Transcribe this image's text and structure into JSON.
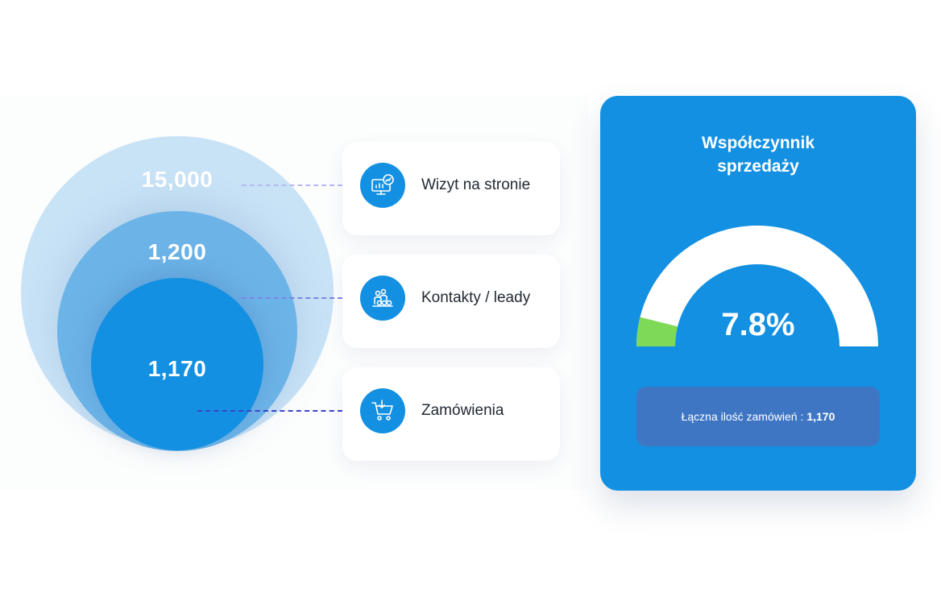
{
  "chart_data": {
    "type": "funnel",
    "stages": [
      {
        "label": "Wizyt na stronie",
        "value": 15000,
        "display": "15,000"
      },
      {
        "label": "Kontakty / leady",
        "value": 1200,
        "display": "1,200"
      },
      {
        "label": "Zamówienia",
        "value": 1170,
        "display": "1,170"
      }
    ]
  },
  "gauge": {
    "title": "Współczynnik\nsprzedaży",
    "value": 7.8,
    "display": "7.8%",
    "track_color": "#ffffff",
    "fill_color": "#7ed957"
  },
  "summary": {
    "label": "Łączna ilość zamówień :",
    "value": "1,170"
  },
  "icons": [
    "monitor-chart-icon",
    "group-people-icon",
    "shopping-cart-icon"
  ],
  "colors": {
    "accent": "#1390e2",
    "outer_circle": "#c8e2f6",
    "middle_circle": "#6cb4e8",
    "summary_box": "#3f76c4",
    "dash_light": "#b7b9f2",
    "dash_mid": "#7f85e6",
    "dash_dark": "#3b44c9"
  }
}
